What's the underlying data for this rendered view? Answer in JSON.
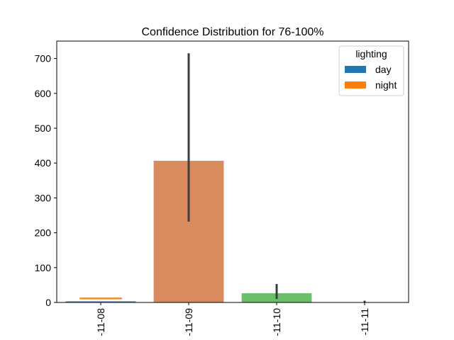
{
  "chart_data": {
    "type": "bar",
    "title": "Confidence Distribution for 76-100%",
    "xlabel": "",
    "ylabel": "",
    "ylim": [
      0,
      750
    ],
    "yticks": [
      0,
      100,
      200,
      300,
      400,
      500,
      600,
      700
    ],
    "categories": [
      "-11-08",
      "-11-09",
      "-11-10",
      "-11-11"
    ],
    "bars": [
      {
        "category": "-11-08",
        "value": 4,
        "color": "#5b8bbf",
        "err_low": 4,
        "err_high": 4
      },
      {
        "category": "-11-09",
        "value": 407,
        "color": "#d98b5f",
        "err_low": 232,
        "err_high": 715
      },
      {
        "category": "-11-10",
        "value": 27,
        "color": "#6cbf6a",
        "err_low": 10,
        "err_high": 53
      },
      {
        "category": "-11-11",
        "value": 1,
        "color": "#c44e52",
        "err_low": 0,
        "err_high": 5
      }
    ],
    "overlay": {
      "category": "-11-08",
      "value": 14,
      "color": "#f08a2a"
    },
    "legend": {
      "title": "lighting",
      "position": "top-right",
      "items": [
        {
          "label": "day",
          "color": "#1f77b4"
        },
        {
          "label": "night",
          "color": "#ff7f0e"
        }
      ]
    },
    "grid": false
  }
}
